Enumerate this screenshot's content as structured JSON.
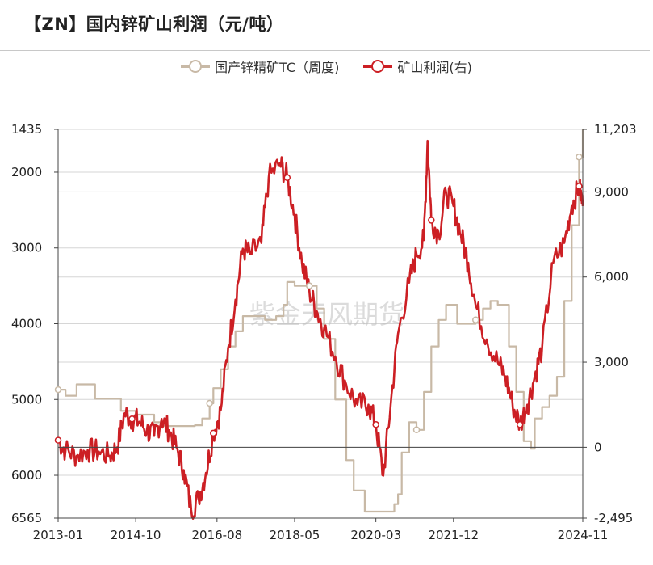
{
  "title": "【ZN】国内锌矿山利润（元/吨）",
  "legend": [
    {
      "label": "国产锌精矿TC（周度)",
      "color": "#c8b9a6"
    },
    {
      "label": "矿山利润(右)",
      "color": "#cc1f24"
    }
  ],
  "watermark": "紫金天风期货",
  "chart_data": {
    "type": "line",
    "title": "【ZN】国内锌矿山利润（元/吨）",
    "x_ticks": [
      "2013-01",
      "2014-10",
      "2016-08",
      "2018-05",
      "2020-03",
      "2021-12",
      "2024-11"
    ],
    "x_range": [
      "2013-01",
      "2024-11"
    ],
    "left_axis": {
      "ticks": [
        1435,
        2000,
        3000,
        4000,
        5000,
        6000,
        6565
      ],
      "range": [
        6565,
        1435
      ],
      "inverted": true
    },
    "right_axis": {
      "ticks": [
        11203,
        9000,
        6000,
        3000,
        0,
        -2495
      ],
      "tick_labels": [
        "11,203",
        "9,000",
        "6,000",
        "3,000",
        "0",
        "-2,495"
      ],
      "range": [
        -2495,
        11203
      ]
    },
    "grid": true,
    "legend_position": "top",
    "series": [
      {
        "name": "国产锌精矿TC（周度)",
        "axis": "left",
        "color": "#c8b9a6",
        "points": [
          [
            "2013-01",
            4870
          ],
          [
            "2013-03",
            4950
          ],
          [
            "2013-06",
            4800
          ],
          [
            "2013-09",
            4800
          ],
          [
            "2013-11",
            4990
          ],
          [
            "2014-04",
            4990
          ],
          [
            "2014-06",
            5150
          ],
          [
            "2014-09",
            5150
          ],
          [
            "2014-10",
            5200
          ],
          [
            "2015-03",
            5300
          ],
          [
            "2015-05",
            5350
          ],
          [
            "2015-09",
            5350
          ],
          [
            "2016-02",
            5340
          ],
          [
            "2016-04",
            5250
          ],
          [
            "2016-06",
            5050
          ],
          [
            "2016-07",
            4850
          ],
          [
            "2016-09",
            4600
          ],
          [
            "2016-11",
            4300
          ],
          [
            "2017-01",
            4100
          ],
          [
            "2017-03",
            3900
          ],
          [
            "2017-06",
            3900
          ],
          [
            "2017-09",
            3950
          ],
          [
            "2017-12",
            3900
          ],
          [
            "2018-02",
            3750
          ],
          [
            "2018-03",
            3450
          ],
          [
            "2018-05",
            3500
          ],
          [
            "2018-07",
            3500
          ],
          [
            "2018-09",
            3500
          ],
          [
            "2018-11",
            3800
          ],
          [
            "2019-01",
            4200
          ],
          [
            "2019-04",
            5000
          ],
          [
            "2019-07",
            5800
          ],
          [
            "2019-09",
            6200
          ],
          [
            "2019-12",
            6480
          ],
          [
            "2020-06",
            6480
          ],
          [
            "2020-08",
            6380
          ],
          [
            "2020-09",
            6250
          ],
          [
            "2020-10",
            5700
          ],
          [
            "2020-12",
            5300
          ],
          [
            "2021-02",
            5400
          ],
          [
            "2021-04",
            4900
          ],
          [
            "2021-06",
            4300
          ],
          [
            "2021-08",
            3950
          ],
          [
            "2021-10",
            3750
          ],
          [
            "2022-01",
            4000
          ],
          [
            "2022-03",
            4000
          ],
          [
            "2022-06",
            3950
          ],
          [
            "2022-08",
            3800
          ],
          [
            "2022-10",
            3700
          ],
          [
            "2022-12",
            3750
          ],
          [
            "2023-03",
            4300
          ],
          [
            "2023-05",
            4900
          ],
          [
            "2023-07",
            5550
          ],
          [
            "2023-09",
            5650
          ],
          [
            "2023-10",
            5250
          ],
          [
            "2023-12",
            5100
          ],
          [
            "2024-02",
            4950
          ],
          [
            "2024-04",
            4700
          ],
          [
            "2024-06",
            3700
          ],
          [
            "2024-08",
            2700
          ],
          [
            "2024-10",
            1800
          ],
          [
            "2024-11",
            1435
          ],
          [
            "2025-01",
            1435
          ]
        ]
      },
      {
        "name": "矿山利润(右)",
        "axis": "right",
        "color": "#cc1f24",
        "points": [
          [
            "2013-01",
            250
          ],
          [
            "2013-03",
            -100
          ],
          [
            "2013-06",
            -300
          ],
          [
            "2013-09",
            -100
          ],
          [
            "2013-12",
            -150
          ],
          [
            "2014-03",
            -300
          ],
          [
            "2014-05",
            0
          ],
          [
            "2014-07",
            1200
          ],
          [
            "2014-09",
            1000
          ],
          [
            "2014-11",
            900
          ],
          [
            "2015-01",
            600
          ],
          [
            "2015-03",
            400
          ],
          [
            "2015-05",
            1000
          ],
          [
            "2015-07",
            600
          ],
          [
            "2015-09",
            0
          ],
          [
            "2015-11",
            -800
          ],
          [
            "2016-01",
            -2200
          ],
          [
            "2016-03",
            -1800
          ],
          [
            "2016-05",
            -900
          ],
          [
            "2016-07",
            500
          ],
          [
            "2016-09",
            1300
          ],
          [
            "2016-11",
            3500
          ],
          [
            "2017-01",
            5200
          ],
          [
            "2017-03",
            7000
          ],
          [
            "2017-05",
            6800
          ],
          [
            "2017-08",
            7200
          ],
          [
            "2017-10",
            9500
          ],
          [
            "2018-01",
            10000
          ],
          [
            "2018-03",
            9500
          ],
          [
            "2018-05",
            8200
          ],
          [
            "2018-07",
            6500
          ],
          [
            "2018-09",
            5500
          ],
          [
            "2018-11",
            4800
          ],
          [
            "2019-01",
            4200
          ],
          [
            "2019-04",
            3200
          ],
          [
            "2019-07",
            2200
          ],
          [
            "2019-10",
            1500
          ],
          [
            "2020-01",
            1500
          ],
          [
            "2020-03",
            800
          ],
          [
            "2020-05",
            -1000
          ],
          [
            "2020-07",
            1500
          ],
          [
            "2020-09",
            4000
          ],
          [
            "2020-12",
            5800
          ],
          [
            "2021-02",
            6800
          ],
          [
            "2021-04",
            7300
          ],
          [
            "2021-05",
            10800
          ],
          [
            "2021-06",
            8000
          ],
          [
            "2021-08",
            7500
          ],
          [
            "2021-10",
            9000
          ],
          [
            "2021-12",
            8500
          ],
          [
            "2022-02",
            7500
          ],
          [
            "2022-04",
            6500
          ],
          [
            "2022-06",
            5000
          ],
          [
            "2022-09",
            3800
          ],
          [
            "2022-12",
            3000
          ],
          [
            "2023-02",
            2500
          ],
          [
            "2023-04",
            1500
          ],
          [
            "2023-06",
            800
          ],
          [
            "2023-08",
            1500
          ],
          [
            "2023-10",
            2500
          ],
          [
            "2023-12",
            3500
          ],
          [
            "2024-03",
            6500
          ],
          [
            "2024-06",
            7200
          ],
          [
            "2024-08",
            8500
          ],
          [
            "2024-10",
            9200
          ],
          [
            "2024-11",
            8500
          ]
        ]
      }
    ]
  }
}
